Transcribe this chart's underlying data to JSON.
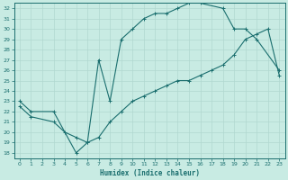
{
  "xlabel": "Humidex (Indice chaleur)",
  "bg_color": "#c8ebe3",
  "line_color": "#1a6e6e",
  "grid_color": "#b0d8d0",
  "xlim": [
    -0.5,
    23.5
  ],
  "ylim": [
    17.5,
    32.5
  ],
  "xticks": [
    0,
    1,
    2,
    3,
    4,
    5,
    6,
    7,
    8,
    9,
    10,
    11,
    12,
    13,
    14,
    15,
    16,
    17,
    18,
    19,
    20,
    21,
    22,
    23
  ],
  "yticks": [
    18,
    19,
    20,
    21,
    22,
    23,
    24,
    25,
    26,
    27,
    28,
    29,
    30,
    31,
    32
  ],
  "curve1_x": [
    0,
    1,
    3,
    5,
    6,
    7,
    8,
    9,
    10,
    11,
    12,
    13,
    14,
    15,
    16,
    18,
    19,
    20,
    21,
    23
  ],
  "curve1_y": [
    23,
    22,
    22,
    18,
    19,
    27,
    23,
    29,
    30,
    31,
    31.5,
    31.5,
    32,
    32.5,
    32.5,
    32,
    30,
    30,
    29,
    26
  ],
  "curve2_x": [
    0,
    1,
    3,
    4,
    5,
    6,
    7,
    8,
    9,
    10,
    11,
    12,
    13,
    14,
    15,
    16,
    17,
    18,
    19,
    20,
    21,
    22,
    23
  ],
  "curve2_y": [
    22.5,
    21.5,
    21,
    20,
    19.5,
    19,
    19.5,
    21,
    22,
    23,
    23.5,
    24,
    24.5,
    25,
    25,
    25.5,
    26,
    26.5,
    27.5,
    29,
    29.5,
    30,
    25.5
  ]
}
